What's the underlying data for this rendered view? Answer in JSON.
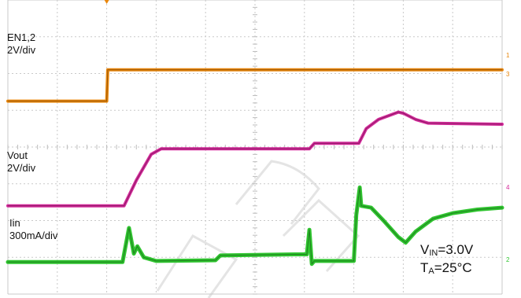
{
  "labels": {
    "en_name": "EN1,2",
    "en_scale": "2V/div",
    "vout_name": "Vout",
    "vout_scale": "2V/div",
    "iin_name": "Iin",
    "iin_scale": "300mA/div"
  },
  "conditions": {
    "vin_prefix": "V",
    "vin_sub": "IN",
    "vin_value": "=3.0V",
    "ta_prefix": "T",
    "ta_sub": "A",
    "ta_value": "=25°C"
  },
  "markers": {
    "ch1": "1",
    "ch3": "3",
    "ch4": "4",
    "ch2": "2"
  },
  "chart_data": {
    "type": "line",
    "grid": true,
    "divisions": {
      "x": 10,
      "y": 8
    },
    "x_unit": "div",
    "y_unit": "div",
    "series": [
      {
        "name": "EN1,2",
        "color": "#e8860c",
        "points": [
          [
            0,
            5.25
          ],
          [
            2.0,
            5.25
          ],
          [
            2.02,
            6.1
          ],
          [
            10,
            6.1
          ]
        ]
      },
      {
        "name": "Vout",
        "color": "#d42a9a",
        "points": [
          [
            0,
            2.4
          ],
          [
            2.35,
            2.4
          ],
          [
            2.6,
            3.1
          ],
          [
            2.9,
            3.8
          ],
          [
            3.1,
            3.95
          ],
          [
            6.1,
            3.95
          ],
          [
            6.2,
            4.1
          ],
          [
            7.1,
            4.1
          ],
          [
            7.25,
            4.5
          ],
          [
            7.5,
            4.75
          ],
          [
            7.9,
            4.95
          ],
          [
            8.0,
            4.92
          ],
          [
            8.25,
            4.75
          ],
          [
            8.5,
            4.65
          ],
          [
            10,
            4.62
          ]
        ]
      },
      {
        "name": "Iin",
        "color": "#2fc42f",
        "points": [
          [
            0,
            0.87
          ],
          [
            2.32,
            0.87
          ],
          [
            2.45,
            1.8
          ],
          [
            2.55,
            1.1
          ],
          [
            2.62,
            1.3
          ],
          [
            2.75,
            1.0
          ],
          [
            3.0,
            0.9
          ],
          [
            4.2,
            0.92
          ],
          [
            4.3,
            1.05
          ],
          [
            5.8,
            1.08
          ],
          [
            6.05,
            1.08
          ],
          [
            6.1,
            1.75
          ],
          [
            6.15,
            0.82
          ],
          [
            6.2,
            0.9
          ],
          [
            7.0,
            0.9
          ],
          [
            7.05,
            2.15
          ],
          [
            7.12,
            2.9
          ],
          [
            7.15,
            2.4
          ],
          [
            7.35,
            2.35
          ],
          [
            7.6,
            2.0
          ],
          [
            7.9,
            1.55
          ],
          [
            8.05,
            1.4
          ],
          [
            8.25,
            1.7
          ],
          [
            8.6,
            2.05
          ],
          [
            9.0,
            2.2
          ],
          [
            9.5,
            2.3
          ],
          [
            10,
            2.35
          ]
        ]
      }
    ]
  }
}
